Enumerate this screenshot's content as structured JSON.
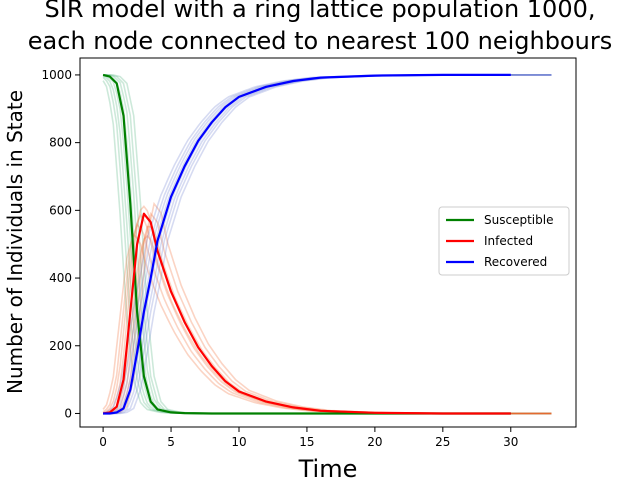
{
  "chart_data": {
    "type": "line",
    "title_lines": [
      "SIR model with a ring lattice population 1000,",
      "each node connected to nearest 100 neighbours"
    ],
    "xlabel": "Time",
    "ylabel": "Number of Individuals in State",
    "xlim": [
      -1.7,
      34.8
    ],
    "ylim": [
      -40,
      1050
    ],
    "x_ticks": [
      0,
      5,
      10,
      15,
      20,
      25,
      30
    ],
    "y_ticks": [
      0,
      200,
      400,
      600,
      800,
      1000
    ],
    "legend_position": "center-right",
    "series": [
      {
        "name": "Susceptible",
        "color": "#008000",
        "band_color": "#4caf7a",
        "x": [
          0,
          0.5,
          1,
          1.5,
          2,
          2.5,
          3,
          3.5,
          4,
          5,
          6,
          8,
          30
        ],
        "values": [
          1000,
          995,
          975,
          880,
          620,
          300,
          110,
          35,
          12,
          3,
          1,
          0,
          0
        ]
      },
      {
        "name": "Infected",
        "color": "#ff0000",
        "band_color": "#f2642a",
        "x": [
          0,
          0.5,
          1,
          1.5,
          2,
          2.5,
          3,
          3.5,
          4,
          5,
          6,
          7,
          8,
          9,
          10,
          12,
          14,
          16,
          20,
          25,
          30
        ],
        "values": [
          0,
          3,
          20,
          100,
          300,
          500,
          590,
          565,
          480,
          360,
          270,
          195,
          140,
          95,
          65,
          35,
          18,
          8,
          2,
          0,
          0
        ]
      },
      {
        "name": "Recovered",
        "color": "#0000ff",
        "band_color": "#6b7fd1",
        "x": [
          0,
          0.5,
          1,
          1.5,
          2,
          2.5,
          3,
          3.5,
          4,
          5,
          6,
          7,
          8,
          9,
          10,
          12,
          14,
          16,
          20,
          25,
          30
        ],
        "values": [
          0,
          0,
          3,
          15,
          70,
          180,
          300,
          400,
          510,
          640,
          730,
          805,
          860,
          905,
          935,
          965,
          982,
          992,
          998,
          1000,
          1000
        ]
      }
    ]
  }
}
